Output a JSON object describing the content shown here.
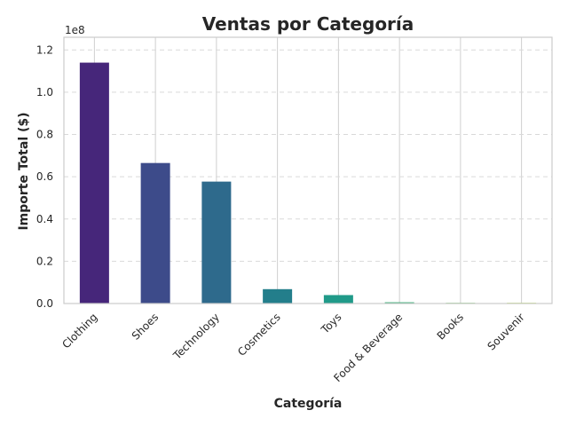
{
  "chart_data": {
    "type": "bar",
    "title": "Ventas por Categoría",
    "xlabel": "Categoría",
    "ylabel": "Importe Total ($)",
    "y_scale_label": "1e8",
    "y_scale": 100000000,
    "ylim": [
      0,
      1.26
    ],
    "y_ticks": [
      "0.0",
      "0.2",
      "0.4",
      "0.6",
      "0.8",
      "1.0",
      "1.2"
    ],
    "categories": [
      "Clothing",
      "Shoes",
      "Technology",
      "Cosmetics",
      "Toys",
      "Food & Beverage",
      "Books",
      "Souvenir"
    ],
    "values": [
      1.14,
      0.665,
      0.577,
      0.068,
      0.04,
      0.006,
      0.002,
      0.001
    ],
    "colors": [
      "#46267a",
      "#3d4b8a",
      "#2e6a8c",
      "#237e8b",
      "#209a89",
      "#3aaf78",
      "#6cc95c",
      "#b0dd3c"
    ],
    "grid": true,
    "legend": "none"
  }
}
